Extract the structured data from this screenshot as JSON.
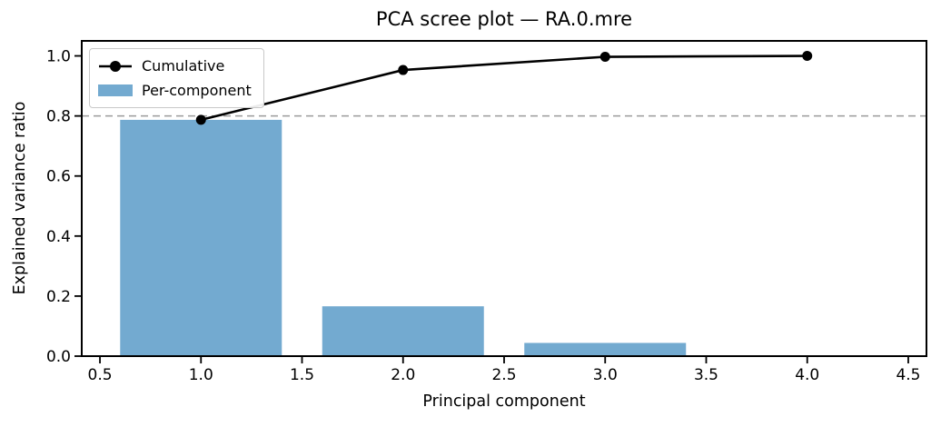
{
  "chart_data": {
    "type": "bar",
    "title": "PCA scree plot — RA.0.mre",
    "xlabel": "Principal component",
    "ylabel": "Explained variance ratio",
    "x": [
      1,
      2,
      3,
      4
    ],
    "series": [
      {
        "name": "Per-component",
        "kind": "bar",
        "values": [
          0.787,
          0.166,
          0.044,
          0.003
        ],
        "color": "#73AAD0",
        "bar_width": 0.8
      },
      {
        "name": "Cumulative",
        "kind": "line",
        "values": [
          0.787,
          0.953,
          0.997,
          1.0
        ],
        "color": "#000000",
        "marker": "circle",
        "line_width": 2.6,
        "marker_radius": 5.5
      }
    ],
    "threshold_line": {
      "y": 0.8,
      "style": "dashed",
      "color": "#9b9b9b"
    },
    "xlim": [
      0.41,
      4.59
    ],
    "ylim": [
      0,
      1.05
    ],
    "xticks": {
      "values": [
        0.5,
        1.0,
        1.5,
        2.0,
        2.5,
        3.0,
        3.5,
        4.0,
        4.5
      ],
      "labels": [
        "0.5",
        "1.0",
        "1.5",
        "2.0",
        "2.5",
        "3.0",
        "3.5",
        "4.0",
        "4.5"
      ]
    },
    "yticks": {
      "values": [
        0.0,
        0.2,
        0.4,
        0.6,
        0.8,
        1.0
      ],
      "labels": [
        "0.0",
        "0.2",
        "0.4",
        "0.6",
        "0.8",
        "1.0"
      ]
    },
    "legend": {
      "position": "upper-left",
      "entries": [
        "Cumulative",
        "Per-component"
      ]
    },
    "grid": false,
    "frame_color": "#000000",
    "background": "#ffffff"
  }
}
